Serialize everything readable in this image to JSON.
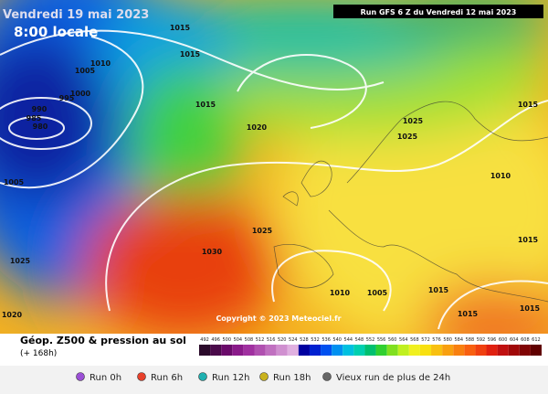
{
  "header": {
    "date": "Vendredi 19 mai 2023",
    "time": "8:00 locale",
    "run": "Run GFS 6 Z du Vendredi 12 mai 2023"
  },
  "map": {
    "isobar_labels": [
      "1015",
      "1015",
      "1010",
      "1005",
      "1000",
      "995",
      "990",
      "985",
      "980",
      "1015",
      "1020",
      "1025",
      "1025",
      "1015",
      "1010",
      "1005",
      "1025",
      "1030",
      "1025",
      "1015",
      "1010",
      "1005",
      "1015",
      "1015",
      "1015",
      "1020"
    ],
    "copyright": "Copyright © 2023 Meteociel.fr"
  },
  "footer": {
    "title": "Géop. Z500 & pression au sol",
    "lead": "(+ 168h)",
    "scale": {
      "labels": [
        "492",
        "496",
        "500",
        "504",
        "508",
        "512",
        "516",
        "520",
        "524",
        "528",
        "532",
        "536",
        "540",
        "544",
        "548",
        "552",
        "556",
        "560",
        "564",
        "568",
        "572",
        "576",
        "580",
        "584",
        "588",
        "592",
        "596",
        "600",
        "604",
        "608",
        "612"
      ],
      "colors": [
        "#2a0a2a",
        "#4a0a4a",
        "#6a0a6a",
        "#8a1a8a",
        "#a030a0",
        "#b050b0",
        "#c070c0",
        "#d090d0",
        "#e0b0e0",
        "#0000a0",
        "#0020d0",
        "#0050f0",
        "#0090f0",
        "#00c0e0",
        "#00d0b0",
        "#00c070",
        "#30d030",
        "#80e020",
        "#c0f020",
        "#f0f020",
        "#f8e010",
        "#f8c010",
        "#f8a010",
        "#f88010",
        "#f86010",
        "#f04010",
        "#e02010",
        "#c01010",
        "#a00808",
        "#800404",
        "#600000"
      ]
    }
  },
  "legend": [
    "Run 0h",
    "Run 6h",
    "Run 12h",
    "Run 18h",
    "Vieux run de plus de 24h"
  ]
}
